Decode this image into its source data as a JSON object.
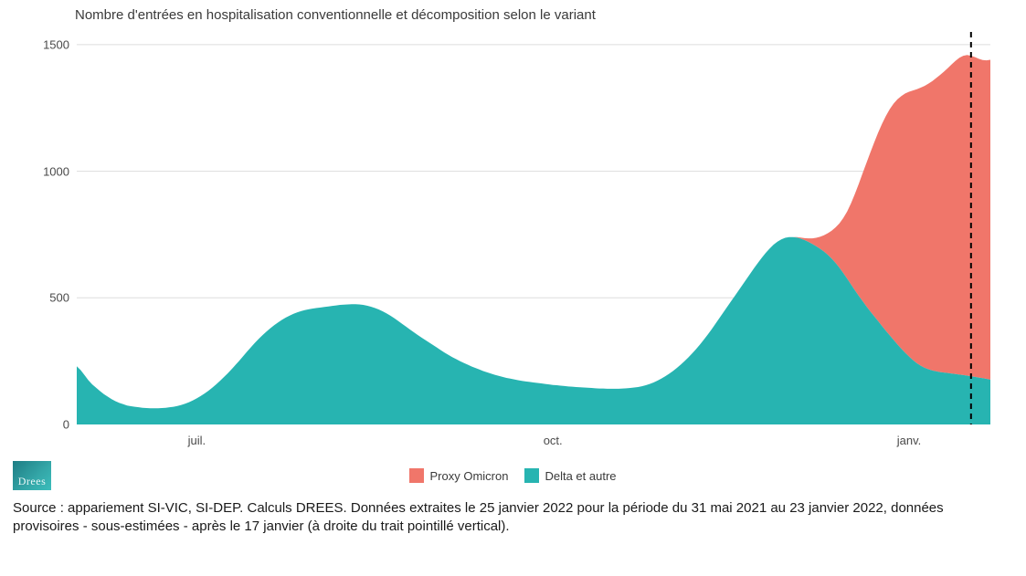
{
  "chart": {
    "type": "stacked-area",
    "title": "Nombre d'entrées en hospitalisation conventionnelle et décomposition selon le variant",
    "title_fontsize": 15,
    "background_color": "#ffffff",
    "grid_color": "#dddddd",
    "axis_text_color": "#4a4a4a",
    "ylim": [
      0,
      1550
    ],
    "ytick_step": 500,
    "yticks": [
      0,
      500,
      1000,
      1500
    ],
    "x_range_days": 237,
    "x_start": "2021-05-31",
    "x_end": "2022-01-23",
    "xticks": [
      {
        "day": 31,
        "label": "juil."
      },
      {
        "day": 123,
        "label": "oct."
      },
      {
        "day": 215,
        "label": "janv."
      }
    ],
    "cutoff_line": {
      "day": 231,
      "stroke": "#000000",
      "dash": "6 5",
      "width": 2
    },
    "series": {
      "delta": {
        "label": "Delta et autre",
        "color": "#27b4b1",
        "values": [
          230,
          215,
          195,
          175,
          158,
          145,
          132,
          120,
          110,
          100,
          92,
          85,
          80,
          75,
          72,
          70,
          68,
          66,
          65,
          64,
          64,
          64,
          65,
          66,
          68,
          70,
          73,
          77,
          82,
          88,
          95,
          103,
          112,
          122,
          133,
          145,
          158,
          172,
          187,
          202,
          218,
          235,
          252,
          270,
          288,
          305,
          322,
          338,
          353,
          367,
          380,
          392,
          403,
          413,
          422,
          430,
          437,
          443,
          448,
          452,
          455,
          458,
          460,
          462,
          464,
          466,
          468,
          470,
          472,
          473,
          474,
          475,
          475,
          474,
          472,
          469,
          465,
          460,
          454,
          447,
          439,
          430,
          420,
          409,
          398,
          387,
          376,
          365,
          354,
          344,
          334,
          324,
          314,
          304,
          294,
          284,
          275,
          266,
          258,
          250,
          243,
          236,
          229,
          223,
          217,
          211,
          206,
          201,
          196,
          192,
          188,
          184,
          181,
          178,
          175,
          172,
          170,
          168,
          166,
          164,
          162,
          160,
          158,
          156,
          155,
          153,
          152,
          150,
          149,
          148,
          147,
          146,
          145,
          144,
          143,
          142,
          142,
          141,
          141,
          141,
          141,
          142,
          143,
          144,
          146,
          148,
          151,
          155,
          160,
          166,
          173,
          181,
          190,
          200,
          211,
          223,
          236,
          250,
          265,
          281,
          298,
          316,
          335,
          355,
          376,
          398,
          420,
          442,
          464,
          486,
          508,
          530,
          552,
          574,
          596,
          618,
          639,
          659,
          678,
          695,
          710,
          722,
          731,
          737,
          740,
          740,
          738,
          734,
          728,
          721,
          713,
          704,
          694,
          683,
          670,
          655,
          638,
          619,
          598,
          576,
          553,
          530,
          508,
          487,
          466,
          446,
          427,
          408,
          389,
          370,
          352,
          334,
          316,
          299,
          283,
          268,
          254,
          242,
          232,
          224,
          218,
          213,
          210,
          207,
          205,
          203,
          201,
          199,
          197,
          195,
          193,
          190,
          188,
          185,
          183,
          180,
          177
        ]
      },
      "omicron": {
        "label": "Proxy Omicron",
        "color": "#f0766a",
        "values": [
          0,
          0,
          0,
          0,
          0,
          0,
          0,
          0,
          0,
          0,
          0,
          0,
          0,
          0,
          0,
          0,
          0,
          0,
          0,
          0,
          0,
          0,
          0,
          0,
          0,
          0,
          0,
          0,
          0,
          0,
          0,
          0,
          0,
          0,
          0,
          0,
          0,
          0,
          0,
          0,
          0,
          0,
          0,
          0,
          0,
          0,
          0,
          0,
          0,
          0,
          0,
          0,
          0,
          0,
          0,
          0,
          0,
          0,
          0,
          0,
          0,
          0,
          0,
          0,
          0,
          0,
          0,
          0,
          0,
          0,
          0,
          0,
          0,
          0,
          0,
          0,
          0,
          0,
          0,
          0,
          0,
          0,
          0,
          0,
          0,
          0,
          0,
          0,
          0,
          0,
          0,
          0,
          0,
          0,
          0,
          0,
          0,
          0,
          0,
          0,
          0,
          0,
          0,
          0,
          0,
          0,
          0,
          0,
          0,
          0,
          0,
          0,
          0,
          0,
          0,
          0,
          0,
          0,
          0,
          0,
          0,
          0,
          0,
          0,
          0,
          0,
          0,
          0,
          0,
          0,
          0,
          0,
          0,
          0,
          0,
          0,
          0,
          0,
          0,
          0,
          0,
          0,
          0,
          0,
          0,
          0,
          0,
          0,
          0,
          0,
          0,
          0,
          0,
          0,
          0,
          0,
          0,
          0,
          0,
          0,
          0,
          0,
          0,
          0,
          0,
          0,
          0,
          0,
          0,
          0,
          0,
          0,
          0,
          0,
          0,
          0,
          0,
          0,
          0,
          0,
          0,
          0,
          0,
          0,
          0,
          0,
          2,
          4,
          8,
          14,
          22,
          33,
          47,
          64,
          85,
          110,
          140,
          175,
          217,
          265,
          320,
          380,
          442,
          505,
          567,
          628,
          687,
          744,
          798,
          848,
          893,
          933,
          968,
          998,
          1024,
          1046,
          1065,
          1082,
          1098,
          1113,
          1128,
          1143,
          1158,
          1173,
          1188,
          1204,
          1221,
          1237,
          1251,
          1261,
          1266,
          1266,
          1263,
          1259,
          1256,
          1258,
          1263
        ]
      }
    }
  },
  "legend": {
    "items": [
      {
        "key": "omicron",
        "label": "Proxy Omicron",
        "color": "#f0766a"
      },
      {
        "key": "delta",
        "label": "Delta et autre",
        "color": "#27b4b1"
      }
    ]
  },
  "logo": {
    "text": "Drees"
  },
  "source_text": "Source : appariement SI-VIC, SI-DEP. Calculs DREES. Données extraites le 25 janvier 2022 pour la période du 31 mai 2021 au 23 janvier 2022, données provisoires - sous-estimées - après le 17 janvier (à droite du trait pointillé vertical)."
}
